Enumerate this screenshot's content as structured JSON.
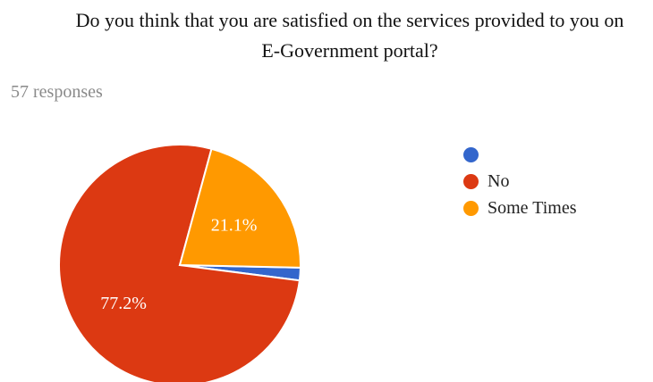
{
  "question": {
    "line1": "Do you think that you are satisfied on the services provided to you on",
    "line2": "E-Government portal?"
  },
  "responses_label": "57 responses",
  "chart_data": {
    "type": "pie",
    "categories": [
      "",
      "No",
      "Some Times"
    ],
    "values": [
      1.7,
      77.2,
      21.1
    ],
    "labels": [
      "",
      "77.2%",
      "21.1%"
    ],
    "colors": [
      "#3366cc",
      "#dc3912",
      "#ff9900"
    ],
    "legend": "right"
  }
}
